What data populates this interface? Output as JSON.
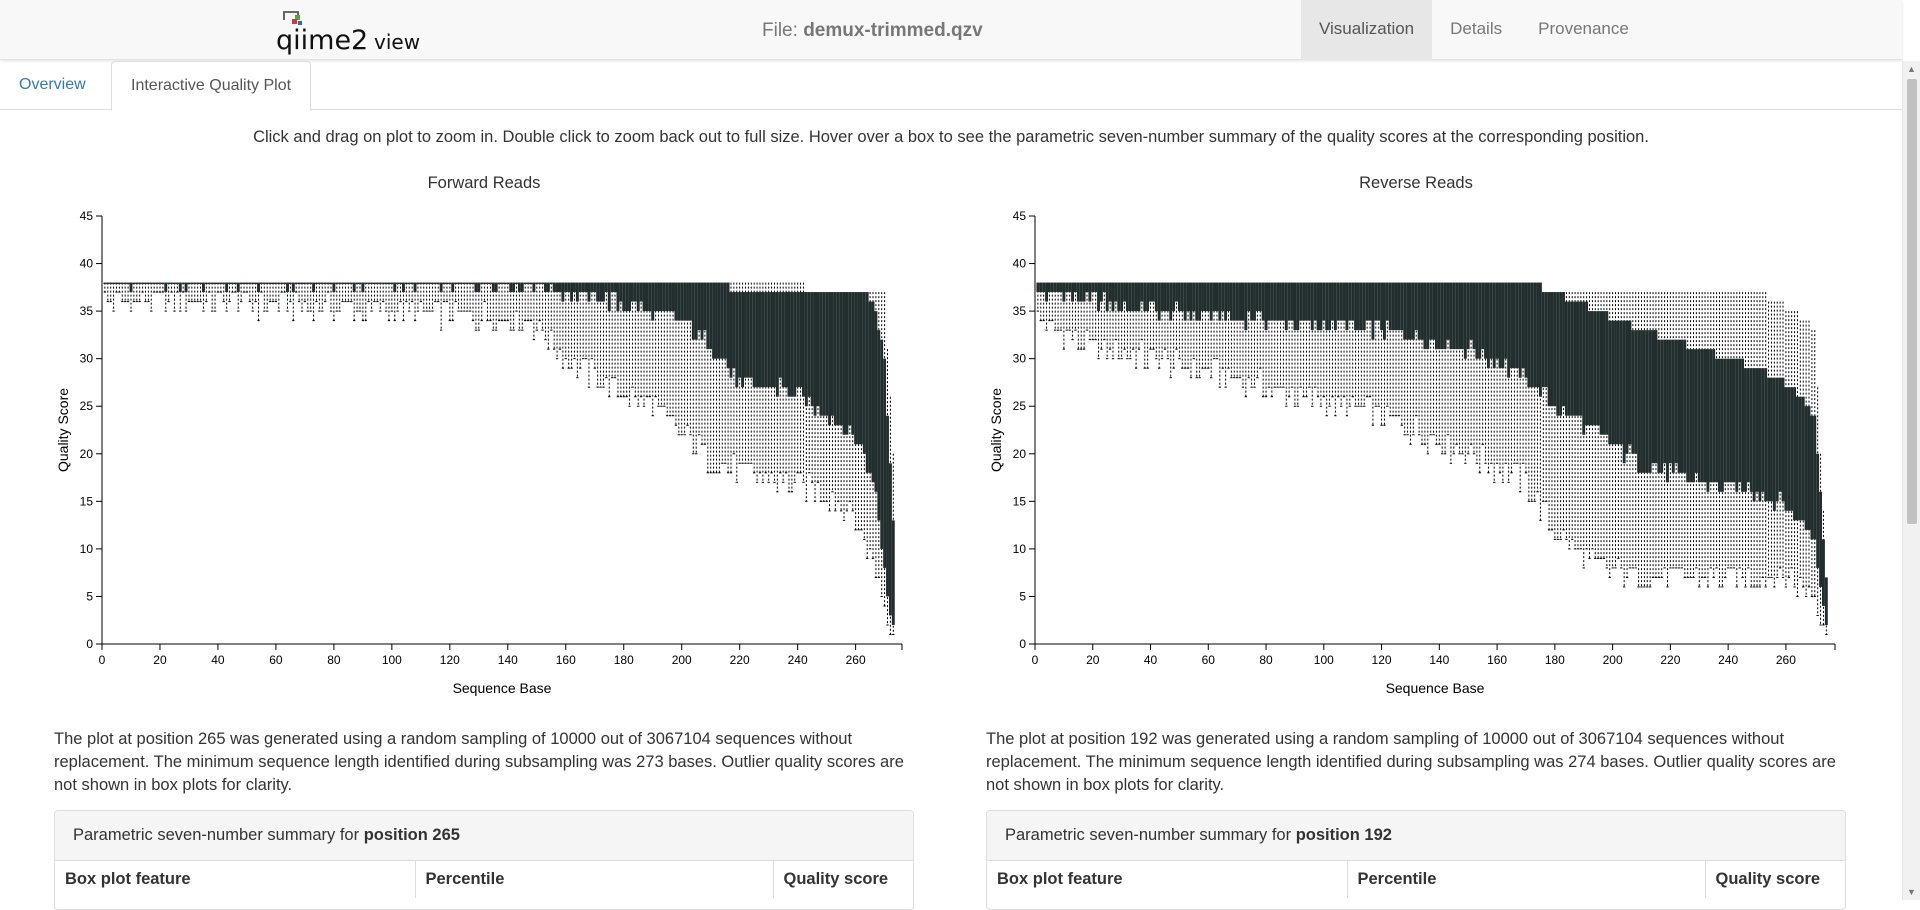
{
  "app": {
    "logo_text": "qiime2view",
    "file_label": "File:",
    "file_name": "demux-trimmed.qzv",
    "nav": [
      "Visualization",
      "Details",
      "Provenance"
    ]
  },
  "tabs": [
    "Overview",
    "Interactive Quality Plot"
  ],
  "instructions": "Click and drag on plot to zoom in. Double click to zoom back out to full size. Hover over a box to see the parametric seven-number summary of the quality scores at the corresponding position.",
  "colors": {
    "box": "#222d2d",
    "whisker": "#000000",
    "link": "#337ab7"
  },
  "chart_data": [
    {
      "type": "box",
      "title": "Forward Reads",
      "xlabel": "Sequence Base",
      "ylabel": "Quality Score",
      "xlim": [
        0,
        276
      ],
      "ylim": [
        0,
        45
      ],
      "xticks": [
        0,
        20,
        40,
        60,
        80,
        100,
        120,
        140,
        160,
        180,
        200,
        220,
        240,
        260
      ],
      "yticks": [
        0,
        5,
        10,
        15,
        20,
        25,
        30,
        35,
        40
      ],
      "n_positions": 273,
      "summary_knots": {
        "position": [
          1,
          40,
          100,
          148,
          160,
          175,
          190,
          200,
          212,
          220,
          235,
          250,
          258,
          263,
          267,
          270,
          273
        ],
        "q09": [
          36,
          36,
          35,
          34,
          30,
          27,
          25,
          22,
          19,
          18,
          17,
          16,
          14,
          11,
          8,
          4,
          2
        ],
        "q25": [
          38,
          38,
          38,
          38,
          37,
          36,
          35,
          34,
          31,
          27,
          27,
          24,
          22,
          20,
          16,
          8,
          2
        ],
        "q50": [
          38,
          38,
          38,
          38,
          38,
          38,
          37,
          37,
          36,
          35,
          34,
          33,
          31,
          28,
          23,
          15,
          8
        ],
        "q75": [
          38,
          38,
          38,
          38,
          38,
          38,
          38,
          38,
          38,
          37,
          37,
          37,
          37,
          37,
          35,
          30,
          13
        ],
        "q91": [
          38,
          38,
          38,
          38,
          38,
          38,
          38,
          38,
          38,
          38,
          38,
          37,
          37,
          37,
          37,
          37,
          20
        ]
      }
    },
    {
      "type": "box",
      "title": "Reverse Reads",
      "xlabel": "Sequence Base",
      "ylabel": "Quality Score",
      "xlim": [
        0,
        277
      ],
      "ylim": [
        0,
        45
      ],
      "xticks": [
        0,
        20,
        40,
        60,
        80,
        100,
        120,
        140,
        160,
        180,
        200,
        220,
        240,
        260
      ],
      "yticks": [
        0,
        5,
        10,
        15,
        20,
        25,
        30,
        35,
        40
      ],
      "n_positions": 274,
      "summary_knots": {
        "position": [
          1,
          20,
          40,
          80,
          120,
          150,
          170,
          180,
          195,
          210,
          230,
          250,
          262,
          270,
          274
        ],
        "q09": [
          34,
          31,
          30,
          27,
          24,
          20,
          17,
          12,
          8,
          7,
          7,
          7,
          7,
          5,
          2
        ],
        "q25": [
          37,
          36,
          35,
          34,
          33,
          31,
          28,
          25,
          22,
          19,
          17,
          16,
          14,
          11,
          2
        ],
        "q50": [
          38,
          38,
          38,
          37,
          37,
          36,
          35,
          33,
          30,
          27,
          25,
          22,
          20,
          17,
          5
        ],
        "q75": [
          38,
          38,
          38,
          38,
          38,
          38,
          38,
          37,
          35,
          33,
          31,
          29,
          27,
          24,
          7
        ],
        "q91": [
          38,
          38,
          38,
          38,
          38,
          38,
          38,
          37,
          37,
          37,
          37,
          37,
          35,
          33,
          7
        ]
      }
    }
  ],
  "forward": {
    "description": "The plot at position 265 was generated using a random sampling of 10000 out of 3067104 sequences without replacement. The minimum sequence length identified during subsampling was 273 bases. Outlier quality scores are not shown in box plots for clarity.",
    "summary_label": "Parametric seven-number summary for",
    "summary_position": "position 265",
    "columns": [
      "Box plot feature",
      "Percentile",
      "Quality score"
    ]
  },
  "reverse": {
    "description": "The plot at position 192 was generated using a random sampling of 10000 out of 3067104 sequences without replacement. The minimum sequence length identified during subsampling was 274 bases. Outlier quality scores are not shown in box plots for clarity.",
    "summary_label": "Parametric seven-number summary for",
    "summary_position": "position 192",
    "columns": [
      "Box plot feature",
      "Percentile",
      "Quality score"
    ]
  }
}
